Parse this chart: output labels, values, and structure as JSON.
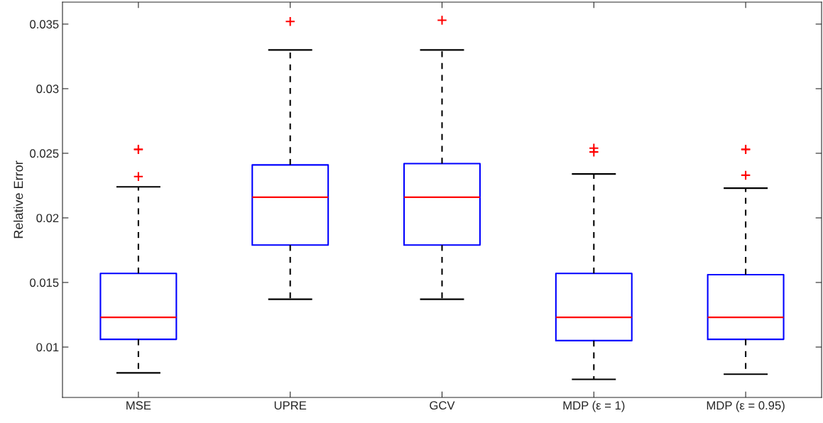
{
  "chart_data": {
    "type": "box",
    "ylabel": "Relative Error",
    "categories": [
      "MSE",
      "UPRE",
      "GCV",
      "MDP (ε = 1)",
      "MDP (ε = 0.95)"
    ],
    "boxes": [
      {
        "low": 0.008,
        "q1": 0.0106,
        "median": 0.0123,
        "q3": 0.0157,
        "high": 0.0224,
        "outliers": [
          0.0232,
          0.0253,
          0.0253
        ]
      },
      {
        "low": 0.0137,
        "q1": 0.0179,
        "median": 0.0216,
        "q3": 0.0241,
        "high": 0.033,
        "outliers": [
          0.0352
        ]
      },
      {
        "low": 0.0137,
        "q1": 0.0179,
        "median": 0.0216,
        "q3": 0.0242,
        "high": 0.033,
        "outliers": [
          0.0353
        ]
      },
      {
        "low": 0.0075,
        "q1": 0.0105,
        "median": 0.0123,
        "q3": 0.0157,
        "high": 0.0234,
        "outliers": [
          0.0251,
          0.0254
        ]
      },
      {
        "low": 0.0079,
        "q1": 0.0106,
        "median": 0.0123,
        "q3": 0.0156,
        "high": 0.0223,
        "outliers": [
          0.0233,
          0.0253,
          0.0253
        ]
      }
    ],
    "color": "#0000ff",
    "ylim": [
      0.0061,
      0.0367
    ],
    "yticks": [
      0.01,
      0.015,
      0.02,
      0.025,
      0.03,
      0.035
    ],
    "grid": false,
    "legend": false
  }
}
